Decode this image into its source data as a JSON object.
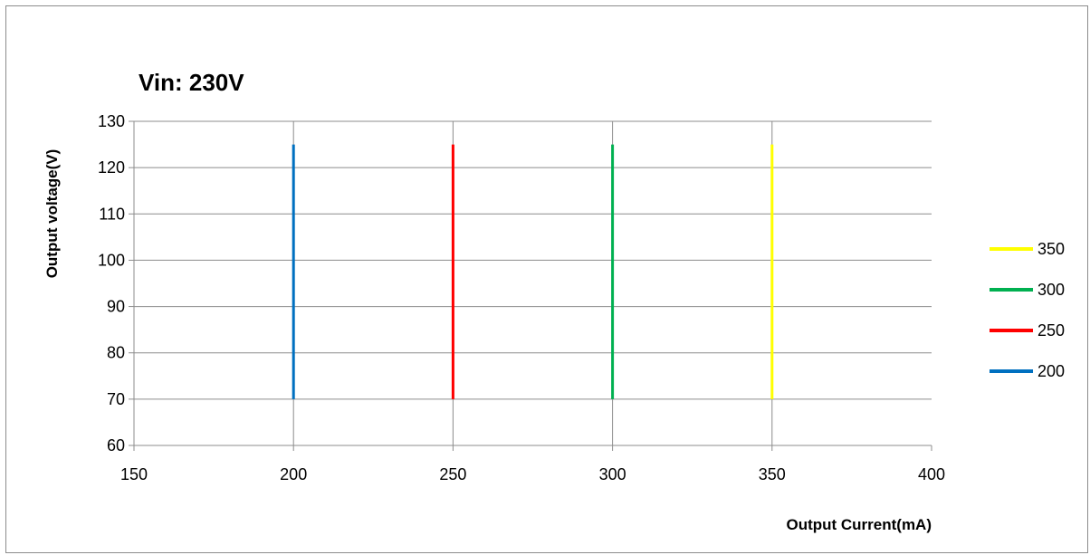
{
  "chart_data": {
    "type": "line",
    "title": "Vin: 230V",
    "xlabel": "Output Current(mA)",
    "ylabel": "Output voltage(V)",
    "xlim": [
      150,
      400
    ],
    "ylim": [
      60,
      130
    ],
    "xticks": [
      150,
      200,
      250,
      300,
      350,
      400
    ],
    "yticks": [
      60,
      70,
      80,
      90,
      100,
      110,
      120,
      130
    ],
    "grid": "horizontal",
    "legend_position": "right",
    "series": [
      {
        "name": "350",
        "color": "#ffff00",
        "x": [
          350,
          350
        ],
        "y": [
          70,
          125
        ]
      },
      {
        "name": "300",
        "color": "#00b050",
        "x": [
          300,
          300
        ],
        "y": [
          70,
          125
        ]
      },
      {
        "name": "250",
        "color": "#ff0000",
        "x": [
          250,
          250
        ],
        "y": [
          70,
          125
        ]
      },
      {
        "name": "200",
        "color": "#0070c0",
        "x": [
          200,
          200
        ],
        "y": [
          70,
          125
        ]
      }
    ]
  }
}
